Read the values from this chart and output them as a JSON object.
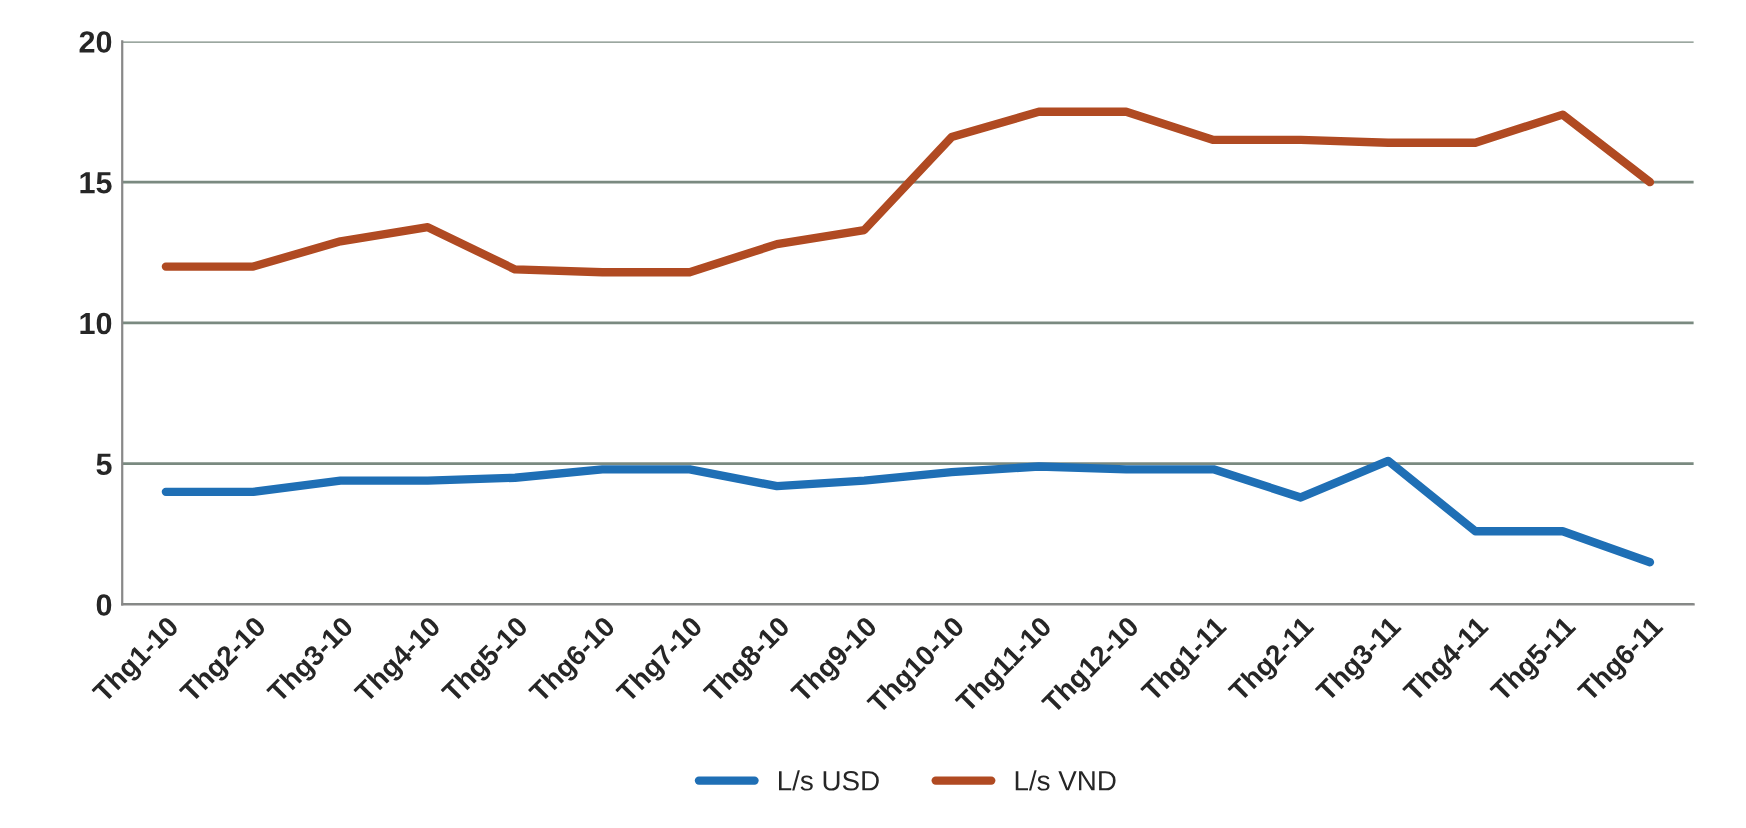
{
  "chart_data": {
    "type": "line",
    "categories": [
      "Thg1-10",
      "Thg2-10",
      "Thg3-10",
      "Thg4-10",
      "Thg5-10",
      "Thg6-10",
      "Thg7-10",
      "Thg8-10",
      "Thg9-10",
      "Thg10-10",
      "Thg11-10",
      "Thg12-10",
      "Thg1-11",
      "Thg2-11",
      "Thg3-11",
      "Thg4-11",
      "Thg5-11",
      "Thg6-11"
    ],
    "series": [
      {
        "name": "L/s USD",
        "color": "#1f6fb5",
        "values": [
          4,
          4,
          4.4,
          4.4,
          4.5,
          4.8,
          4.8,
          4.2,
          4.4,
          4.7,
          4.9,
          4.8,
          4.8,
          3.8,
          5.1,
          2.6,
          2.6,
          1.5
        ]
      },
      {
        "name": "L/s VND",
        "color": "#b04a22",
        "values": [
          12,
          12,
          12.9,
          13.4,
          11.9,
          11.8,
          11.8,
          12.8,
          13.3,
          16.6,
          17.5,
          17.5,
          16.5,
          16.5,
          16.4,
          16.4,
          17.4,
          15
        ]
      }
    ],
    "ylim": [
      0,
      20
    ],
    "yticks": [
      0,
      5,
      10,
      15,
      20
    ],
    "grid": "y",
    "legend": "bottom",
    "marker": "none",
    "line_style": "solid"
  }
}
